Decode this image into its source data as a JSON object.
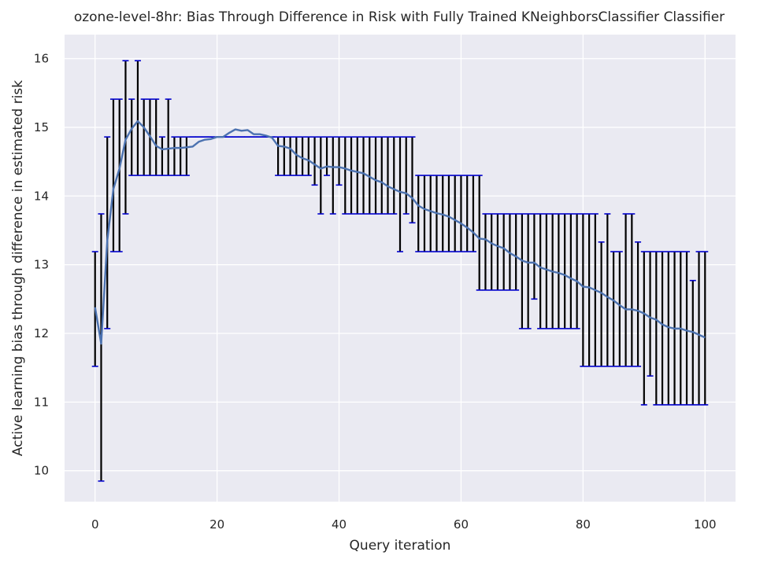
{
  "chart_data": {
    "type": "line",
    "title": "ozone-level-8hr: Bias Through Difference in Risk with Fully Trained KNeighborsClassifier Classifier",
    "xlabel": "Query iteration",
    "ylabel": "Active learning bias through difference in estimated risk",
    "xlim": [
      -5,
      105
    ],
    "ylim": [
      9.55,
      16.35
    ],
    "xticks": [
      0,
      20,
      40,
      60,
      80,
      100
    ],
    "yticks": [
      10,
      11,
      12,
      13,
      14,
      15,
      16
    ],
    "grid": true,
    "background": "#eaeaf2",
    "colors": {
      "line": "#4c72b0",
      "errorbar": "#000000",
      "cap": "#0000cd"
    },
    "series": [
      {
        "x": [
          0,
          1,
          2,
          3,
          4,
          5,
          6,
          7,
          8,
          9,
          10,
          11,
          12,
          13,
          14,
          15,
          16,
          17,
          18,
          19,
          20,
          21,
          22,
          23,
          24,
          25,
          26,
          27,
          28,
          29,
          30,
          31,
          32,
          33,
          34,
          35,
          36,
          37,
          38,
          39,
          40,
          41,
          42,
          43,
          44,
          45,
          46,
          47,
          48,
          49,
          50,
          51,
          52,
          53,
          54,
          55,
          56,
          57,
          58,
          59,
          60,
          61,
          62,
          63,
          64,
          65,
          66,
          67,
          68,
          69,
          70,
          71,
          72,
          73,
          74,
          75,
          76,
          77,
          78,
          79,
          80,
          81,
          82,
          83,
          84,
          85,
          86,
          87,
          88,
          89,
          90,
          91,
          92,
          93,
          94,
          95,
          96,
          97,
          98,
          99,
          100
        ],
        "y": [
          12.38,
          11.85,
          13.35,
          14.1,
          14.4,
          14.82,
          14.98,
          15.09,
          15.0,
          14.87,
          14.73,
          14.68,
          14.69,
          14.7,
          14.7,
          14.71,
          14.72,
          14.79,
          14.82,
          14.83,
          14.86,
          14.86,
          14.92,
          14.97,
          14.95,
          14.96,
          14.9,
          14.9,
          14.88,
          14.85,
          14.73,
          14.72,
          14.69,
          14.6,
          14.55,
          14.52,
          14.46,
          14.4,
          14.43,
          14.42,
          14.42,
          14.4,
          14.37,
          14.35,
          14.33,
          14.28,
          14.23,
          14.2,
          14.14,
          14.1,
          14.06,
          14.04,
          13.97,
          13.86,
          13.81,
          13.78,
          13.75,
          13.73,
          13.7,
          13.65,
          13.6,
          13.54,
          13.47,
          13.38,
          13.37,
          13.31,
          13.27,
          13.24,
          13.17,
          13.12,
          13.06,
          13.03,
          13.03,
          12.96,
          12.93,
          12.9,
          12.88,
          12.85,
          12.8,
          12.76,
          12.68,
          12.67,
          12.63,
          12.59,
          12.53,
          12.48,
          12.41,
          12.35,
          12.35,
          12.33,
          12.29,
          12.23,
          12.2,
          12.13,
          12.09,
          12.07,
          12.07,
          12.04,
          12.02,
          11.98,
          11.94
        ],
        "lower": [
          11.52,
          9.85,
          12.07,
          13.19,
          13.19,
          13.74,
          14.3,
          14.3,
          14.3,
          14.3,
          14.3,
          14.3,
          14.3,
          14.3,
          14.3,
          14.3,
          14.86,
          14.86,
          14.86,
          14.86,
          14.86,
          14.86,
          14.86,
          14.86,
          14.86,
          14.86,
          14.86,
          14.86,
          14.86,
          14.86,
          14.3,
          14.3,
          14.3,
          14.3,
          14.3,
          14.3,
          14.16,
          13.74,
          14.3,
          13.74,
          14.16,
          13.74,
          13.74,
          13.74,
          13.74,
          13.74,
          13.74,
          13.74,
          13.74,
          13.74,
          13.19,
          13.74,
          13.61,
          13.19,
          13.19,
          13.19,
          13.19,
          13.19,
          13.19,
          13.19,
          13.19,
          13.19,
          13.19,
          12.63,
          12.63,
          12.63,
          12.63,
          12.63,
          12.63,
          12.63,
          12.07,
          12.07,
          12.5,
          12.07,
          12.07,
          12.07,
          12.07,
          12.07,
          12.07,
          12.07,
          11.52,
          11.52,
          11.52,
          11.52,
          11.52,
          11.52,
          11.52,
          11.52,
          11.52,
          11.52,
          10.96,
          11.38,
          10.96,
          10.96,
          10.96,
          10.96,
          10.96,
          10.96,
          10.96,
          10.96,
          10.96
        ],
        "upper": [
          13.19,
          13.74,
          14.86,
          15.41,
          15.41,
          15.97,
          15.41,
          15.97,
          15.41,
          15.41,
          15.41,
          14.86,
          15.41,
          14.86,
          14.86,
          14.86,
          14.86,
          14.86,
          14.86,
          14.86,
          14.86,
          14.86,
          14.86,
          14.86,
          14.86,
          14.86,
          14.86,
          14.86,
          14.86,
          14.86,
          14.86,
          14.86,
          14.86,
          14.86,
          14.86,
          14.86,
          14.86,
          14.86,
          14.86,
          14.86,
          14.86,
          14.86,
          14.86,
          14.86,
          14.86,
          14.86,
          14.86,
          14.86,
          14.86,
          14.86,
          14.86,
          14.86,
          14.86,
          14.3,
          14.3,
          14.3,
          14.3,
          14.3,
          14.3,
          14.3,
          14.3,
          14.3,
          14.3,
          14.3,
          13.74,
          13.74,
          13.74,
          13.74,
          13.74,
          13.74,
          13.74,
          13.74,
          13.74,
          13.74,
          13.74,
          13.74,
          13.74,
          13.74,
          13.74,
          13.74,
          13.74,
          13.74,
          13.74,
          13.33,
          13.74,
          13.19,
          13.19,
          13.74,
          13.74,
          13.33,
          13.19,
          13.19,
          13.19,
          13.19,
          13.19,
          13.19,
          13.19,
          13.19,
          12.77,
          13.19,
          13.19
        ]
      }
    ]
  }
}
